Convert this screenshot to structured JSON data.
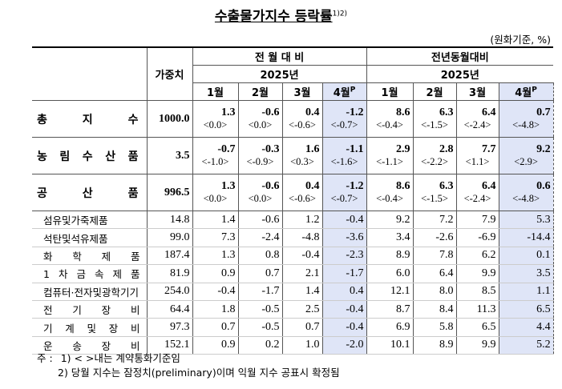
{
  "title": "수출물가지수 등락률",
  "title_note": "1)2)",
  "unit": "(원화기준, %)",
  "header": {
    "weight": "가중치",
    "groups": [
      {
        "name": "전 월 대 비",
        "year": "2025년",
        "months": [
          "1월",
          "2월",
          "3월",
          "4월"
        ],
        "prelim": "P"
      },
      {
        "name": "전년동월대비",
        "year": "2025년",
        "months": [
          "1월",
          "2월",
          "3월",
          "4월"
        ],
        "prelim": "P"
      }
    ]
  },
  "rows": [
    {
      "label": "총 지 수",
      "weight": "1000.0",
      "main": true,
      "values": [
        [
          "1.3",
          "-0.6",
          "0.4",
          "-1.2"
        ],
        [
          "8.6",
          "6.3",
          "6.4",
          "0.7"
        ]
      ],
      "contract": [
        [
          "<0.0>",
          "<0.0>",
          "<-0.6>",
          "<-0.7>"
        ],
        [
          "<-0.4>",
          "<-1.5>",
          "<-2.4>",
          "<-4.8>"
        ]
      ]
    },
    {
      "label": "농 림 수 산 품",
      "weight": "3.5",
      "main": true,
      "values": [
        [
          "-0.7",
          "-0.3",
          "1.6",
          "-1.1"
        ],
        [
          "2.9",
          "2.8",
          "7.7",
          "9.2"
        ]
      ],
      "contract": [
        [
          "<-1.0>",
          "<-0.9>",
          "<0.3>",
          "<-1.6>"
        ],
        [
          "<-1.1>",
          "<-2.2>",
          "<1.1>",
          "<2.9>"
        ]
      ]
    },
    {
      "label": "공 산 품",
      "weight": "996.5",
      "main": true,
      "values": [
        [
          "1.3",
          "-0.6",
          "0.4",
          "-1.2"
        ],
        [
          "8.6",
          "6.3",
          "6.4",
          "0.6"
        ]
      ],
      "contract": [
        [
          "<0.0>",
          "<0.0>",
          "<-0.6>",
          "<-0.7>"
        ],
        [
          "<-0.4>",
          "<-1.5>",
          "<-2.4>",
          "<-4.8>"
        ]
      ]
    },
    {
      "label": "섬유및가죽제품",
      "weight": "14.8",
      "main": false,
      "values": [
        [
          "1.4",
          "-0.6",
          "1.2",
          "-0.4"
        ],
        [
          "9.2",
          "7.2",
          "7.9",
          "5.3"
        ]
      ]
    },
    {
      "label": "석탄및석유제품",
      "weight": "99.0",
      "main": false,
      "values": [
        [
          "7.3",
          "-2.4",
          "-4.8",
          "-3.6"
        ],
        [
          "3.4",
          "-2.6",
          "-6.9",
          "-14.4"
        ]
      ]
    },
    {
      "label": "화 학 제 품",
      "weight": "187.4",
      "main": false,
      "values": [
        [
          "1.3",
          "0.8",
          "-0.4",
          "-2.3"
        ],
        [
          "8.9",
          "7.8",
          "6.2",
          "0.1"
        ]
      ]
    },
    {
      "label": "1 차 금 속 제 품",
      "weight": "81.9",
      "main": false,
      "values": [
        [
          "0.9",
          "0.7",
          "2.1",
          "-1.7"
        ],
        [
          "6.0",
          "6.4",
          "9.9",
          "3.5"
        ]
      ]
    },
    {
      "label": "컴퓨터·전자및광학기기",
      "weight": "254.0",
      "main": false,
      "values": [
        [
          "-0.4",
          "-1.7",
          "1.4",
          "0.4"
        ],
        [
          "12.1",
          "8.0",
          "8.5",
          "1.1"
        ]
      ]
    },
    {
      "label": "전 기 장 비",
      "weight": "64.4",
      "main": false,
      "values": [
        [
          "1.8",
          "-0.5",
          "2.5",
          "-0.4"
        ],
        [
          "8.7",
          "8.4",
          "11.3",
          "6.5"
        ]
      ]
    },
    {
      "label": "기 계 및 장 비",
      "weight": "97.3",
      "main": false,
      "values": [
        [
          "0.7",
          "-0.5",
          "0.7",
          "-0.4"
        ],
        [
          "6.9",
          "5.8",
          "6.5",
          "4.4"
        ]
      ]
    },
    {
      "label": "운 송 장 비",
      "weight": "152.1",
      "main": false,
      "values": [
        [
          "0.9",
          "0.2",
          "1.0",
          "-2.0"
        ],
        [
          "10.1",
          "8.9",
          "9.9",
          "5.2"
        ]
      ]
    }
  ],
  "notes": {
    "prefix": "주 :",
    "items": [
      "1) < >내는 계약통화기준임",
      "2) 당월 지수는 잠정치(preliminary)이며 익월 지수 공표시 확정됨"
    ]
  }
}
